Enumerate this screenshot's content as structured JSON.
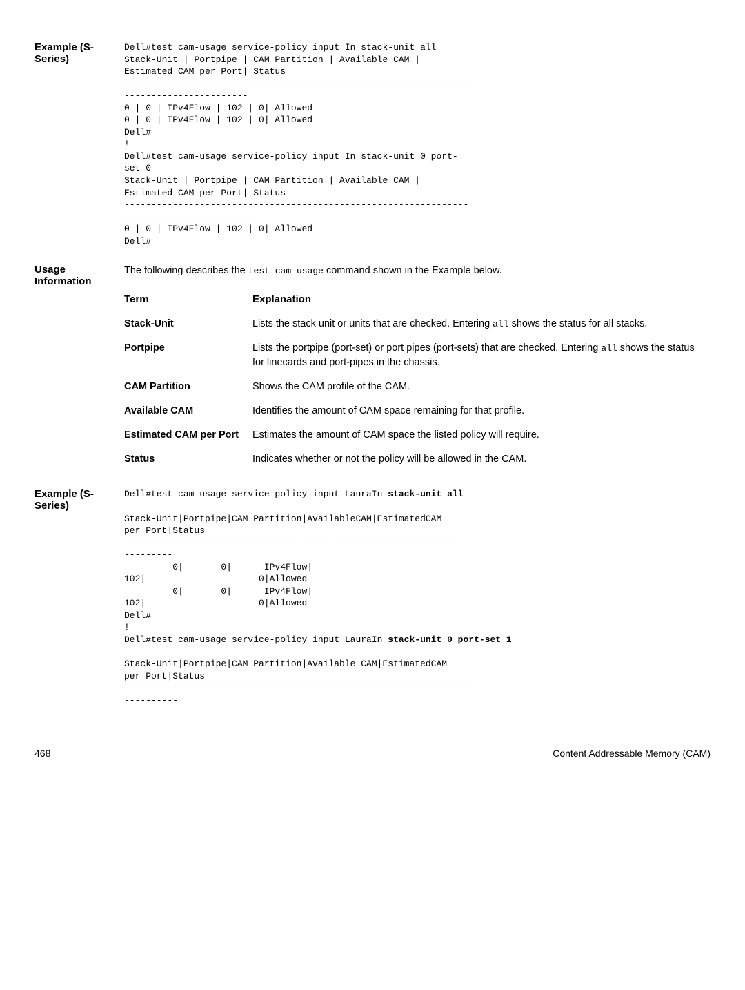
{
  "example1": {
    "label": "Example (S-Series)",
    "block1": "Dell#test cam-usage service-policy input In stack-unit all\nStack-Unit | Portpipe | CAM Partition | Available CAM |\nEstimated CAM per Port| Status\n----------------------------------------------------------------\n-----------------------\n0 | 0 | IPv4Flow | 102 | 0| Allowed\n0 | 0 | IPv4Flow | 102 | 0| Allowed\nDell#\n!\nDell#test cam-usage service-policy input In stack-unit 0 port-\nset 0\nStack-Unit | Portpipe | CAM Partition | Available CAM |\nEstimated CAM per Port| Status\n----------------------------------------------------------------\n------------------------\n0 | 0 | IPv4Flow | 102 | 0| Allowed\nDell#"
  },
  "usage": {
    "label": "Usage Information",
    "intro_pre": "The following describes the ",
    "intro_code": "test cam-usage",
    "intro_post": " command shown in the Example below.",
    "header_term": "Term",
    "header_expl": "Explanation",
    "rows": [
      {
        "term": "Stack-Unit",
        "expl_pre": "Lists the stack unit or units that are checked. Entering ",
        "expl_code": "all",
        "expl_post": " shows the status for all stacks."
      },
      {
        "term": "Portpipe",
        "expl_pre": "Lists the portpipe (port-set) or port pipes (port-sets) that are checked. Entering ",
        "expl_code": "all",
        "expl_post": " shows the status for linecards and port-pipes in the chassis."
      },
      {
        "term": "CAM Partition",
        "expl_pre": "Shows the CAM profile of the CAM.",
        "expl_code": "",
        "expl_post": ""
      },
      {
        "term": "Available CAM",
        "expl_pre": "Identifies the amount of CAM space remaining for that profile.",
        "expl_code": "",
        "expl_post": ""
      },
      {
        "term": "Estimated CAM per Port",
        "expl_pre": "Estimates the amount of CAM space the listed policy will require.",
        "expl_code": "",
        "expl_post": ""
      },
      {
        "term": "Status",
        "expl_pre": "Indicates whether or not the policy will be allowed in the CAM.",
        "expl_code": "",
        "expl_post": ""
      }
    ]
  },
  "example2": {
    "label": "Example (S-Series)",
    "line1_pre": "Dell#test cam-usage service-policy input LauraIn ",
    "line1_bold": "stack-unit all",
    "block2": "Stack-Unit|Portpipe|CAM Partition|AvailableCAM|EstimatedCAM\nper Port|Status\n----------------------------------------------------------------\n---------\n         0|       0|      IPv4Flow|\n102|                     0|Allowed\n         0|       0|      IPv4Flow|\n102|                     0|Allowed\nDell#\n!",
    "line3_pre": "Dell#test cam-usage service-policy input LauraIn ",
    "line3_bold": "stack-unit 0 port-set 1",
    "block4": "Stack-Unit|Portpipe|CAM Partition|Available CAM|EstimatedCAM\nper Port|Status\n----------------------------------------------------------------\n----------"
  },
  "footer": {
    "page": "468",
    "title": "Content Addressable Memory (CAM)"
  }
}
